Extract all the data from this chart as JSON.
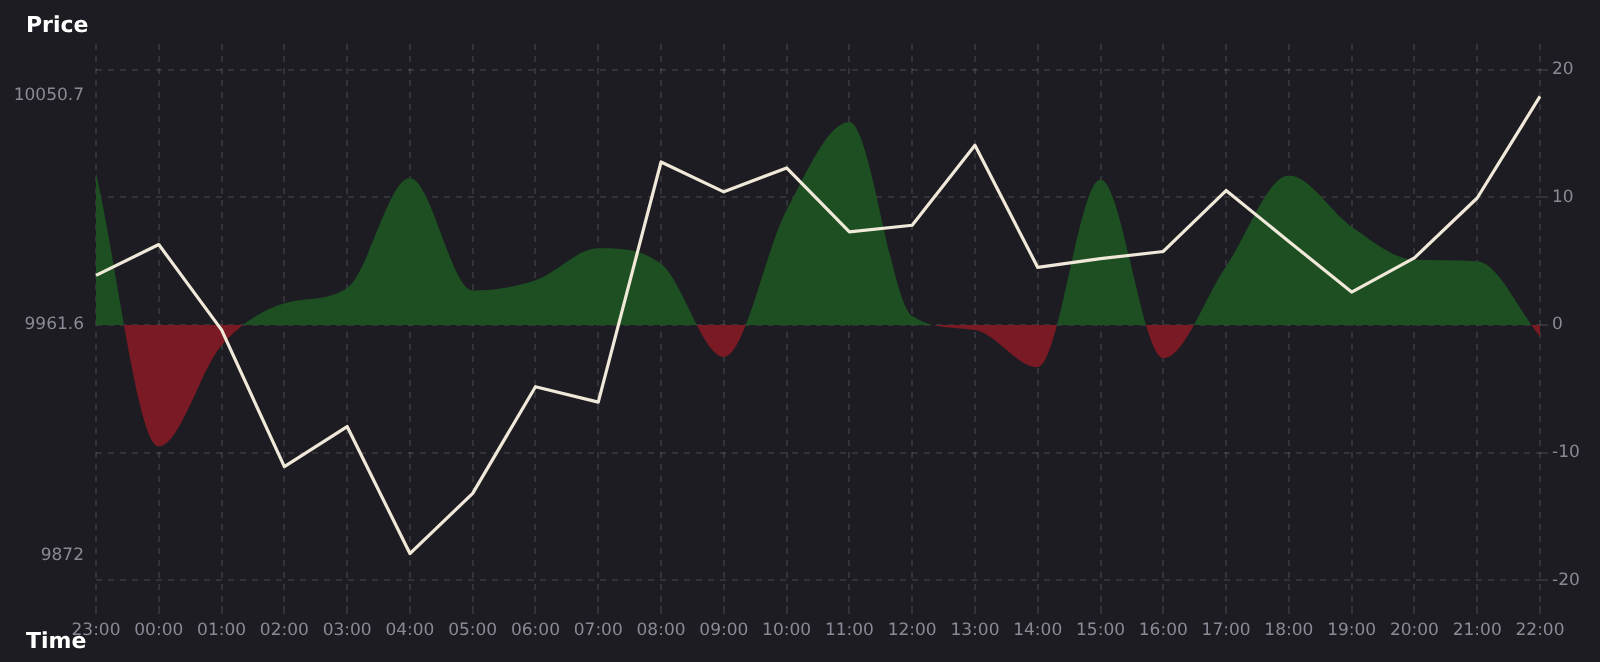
{
  "chart_data": {
    "type": "line",
    "xlabel": "Time",
    "ylabel": "Price",
    "categories": [
      "23:00",
      "00:00",
      "01:00",
      "02:00",
      "03:00",
      "04:00",
      "05:00",
      "06:00",
      "07:00",
      "08:00",
      "09:00",
      "10:00",
      "11:00",
      "12:00",
      "13:00",
      "14:00",
      "15:00",
      "16:00",
      "17:00",
      "18:00",
      "19:00",
      "20:00",
      "21:00",
      "22:00"
    ],
    "series": [
      {
        "type": "area",
        "axis": "y2",
        "values": [
          11.9,
          -9.5,
          -1.6,
          1.7,
          2.9,
          11.5,
          2.7,
          3.5,
          6.0,
          4.8,
          -2.5,
          9.0,
          15.9,
          0.7,
          -0.4,
          -3.3,
          11.4,
          -2.6,
          4.6,
          11.7,
          7.7,
          5.1,
          5.0,
          -0.9
        ],
        "colors": [
          "#1d4f22",
          "#7a1a24",
          "#7a1a24",
          "#1d4f22",
          "#1d4f22",
          "#1d4f22",
          "#1d4f22",
          "#1d4f22",
          "#1d4f22",
          "#1d4f22",
          "#7a1a24",
          "#1d4f22",
          "#1d4f22",
          "#1d4f22",
          "#7a1a24",
          "#7a1a24",
          "#1d4f22",
          "#7a1a24",
          "#1d4f22",
          "#1d4f22",
          "#1d4f22",
          "#1d4f22",
          "#1d4f22",
          "#7a1a24"
        ]
      },
      {
        "type": "line",
        "values": [
          9980.9,
          9992.9,
          9959.7,
          9906.5,
          9922.1,
          9872.7,
          9896.1,
          9937.6,
          9931.6,
          10025.0,
          10013.4,
          10022.7,
          9997.8,
          10000.4,
          10031.5,
          9984.0,
          9987.4,
          9990.2,
          10013.9,
          9994.1,
          9974.4,
          9987.7,
          10011.0,
          10050.5
        ],
        "color": "#f0e8d8"
      }
    ],
    "ylim": [
      9852.3,
      10070.9
    ],
    "yticks": [
      9872,
      9961.6,
      10050.7
    ],
    "y2lim": [
      -22,
      22
    ],
    "y2ticks": [
      -20,
      -10,
      0,
      10,
      20
    ],
    "grid": true,
    "legend": false,
    "marker": "none",
    "line_style": "solid"
  }
}
